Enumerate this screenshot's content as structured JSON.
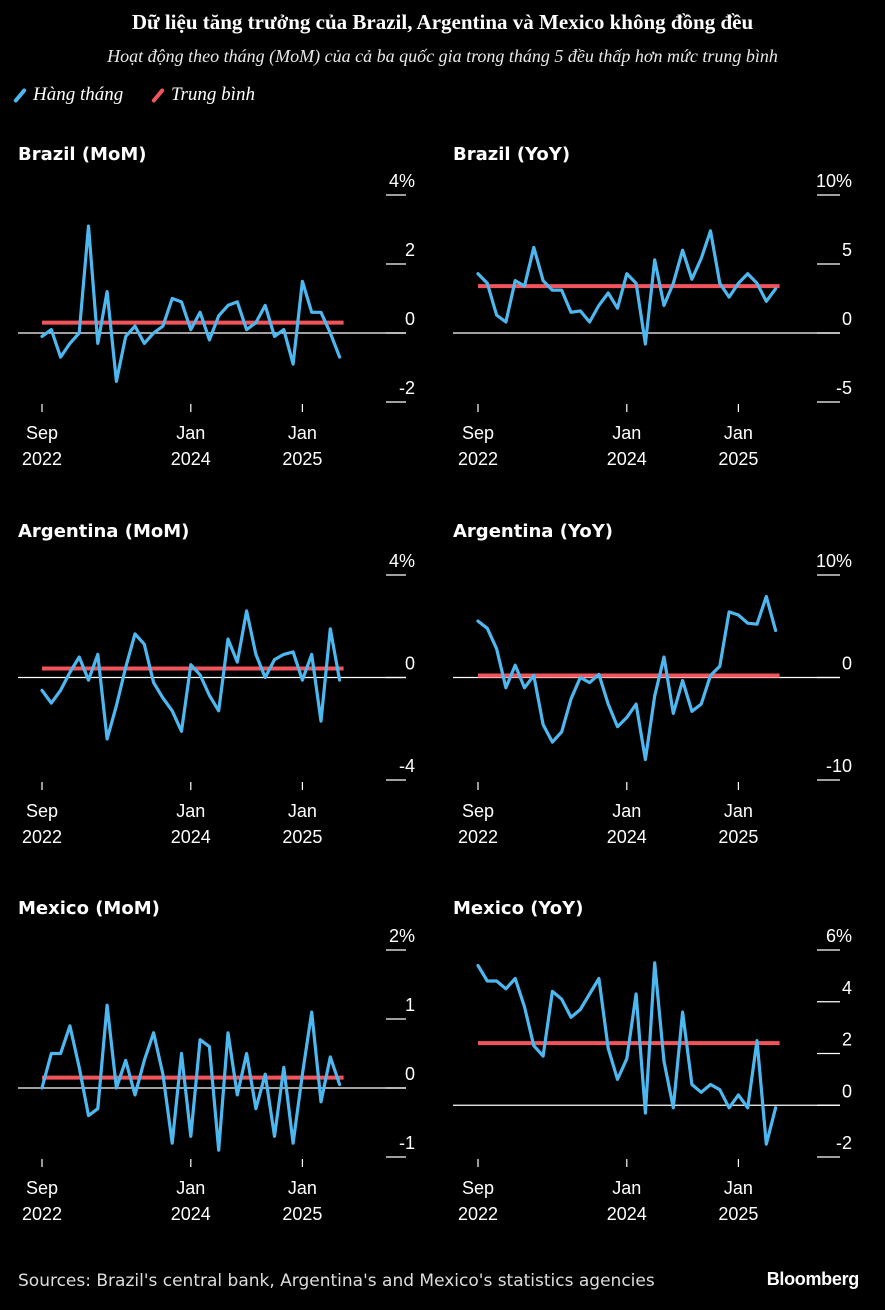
{
  "title": "Dữ liệu tăng trưởng của Brazil, Argentina và Mexico không đồng đều",
  "subtitle": "Hoạt động theo tháng (MoM) của cả ba quốc gia trong tháng 5 đều thấp hơn mức trung bình",
  "legend": [
    {
      "label": "Hàng tháng",
      "color": "#4db8f0"
    },
    {
      "label": "Trung bình",
      "color": "#f2545b"
    }
  ],
  "footer": "Sources: Brazil's central bank, Argentina's and Mexico's statistics agencies",
  "brand": "Bloomberg",
  "colors": {
    "line": "#4db8f0",
    "avg": "#f2545b",
    "axis": "#ffffff"
  },
  "x_ticks": [
    {
      "month": 0,
      "line1": "Sep",
      "line2": "2022"
    },
    {
      "month": 16,
      "line1": "Jan",
      "line2": "2024"
    },
    {
      "month": 28,
      "line1": "Jan",
      "line2": "2025"
    }
  ],
  "chart_data": [
    {
      "id": "brazil-mom",
      "title": "Brazil (MoM)",
      "type": "line",
      "ylim": [
        -2,
        4
      ],
      "yticks": [
        {
          "v": 4,
          "label": "4%"
        },
        {
          "v": 2,
          "label": "2"
        },
        {
          "v": 0,
          "label": "0"
        },
        {
          "v": -2,
          "label": "-2"
        }
      ],
      "average": 0.3,
      "x_start": "2022-09",
      "x_end": "2025-05",
      "values": [
        -0.1,
        0.1,
        -0.7,
        -0.3,
        0.0,
        3.1,
        -0.3,
        1.2,
        -1.4,
        -0.1,
        0.2,
        -0.3,
        0.0,
        0.2,
        1.0,
        0.9,
        0.1,
        0.6,
        -0.2,
        0.5,
        0.8,
        0.9,
        0.1,
        0.3,
        0.8,
        -0.1,
        0.1,
        -0.9,
        1.5,
        0.6,
        0.6,
        0.0,
        -0.7
      ]
    },
    {
      "id": "brazil-yoy",
      "title": "Brazil (YoY)",
      "type": "line",
      "ylim": [
        -5,
        10
      ],
      "yticks": [
        {
          "v": 10,
          "label": "10%"
        },
        {
          "v": 5,
          "label": "5"
        },
        {
          "v": 0,
          "label": "0"
        },
        {
          "v": -5,
          "label": "-5"
        }
      ],
      "average": 3.4,
      "x_start": "2022-09",
      "x_end": "2025-05",
      "values": [
        4.3,
        3.6,
        1.3,
        0.8,
        3.8,
        3.4,
        6.2,
        3.8,
        3.1,
        3.1,
        1.5,
        1.6,
        0.8,
        2.0,
        2.9,
        1.8,
        4.3,
        3.6,
        -0.8,
        5.3,
        2.0,
        3.6,
        6.0,
        3.9,
        5.4,
        7.4,
        3.6,
        2.6,
        3.6,
        4.3,
        3.6,
        2.3,
        3.2
      ]
    },
    {
      "id": "argentina-mom",
      "title": "Argentina (MoM)",
      "type": "line",
      "ylim": [
        -4,
        4
      ],
      "yticks": [
        {
          "v": 4,
          "label": "4%"
        },
        {
          "v": 0,
          "label": "0"
        },
        {
          "v": -4,
          "label": "-4"
        }
      ],
      "average": 0.35,
      "x_start": "2022-09",
      "x_end": "2025-05",
      "values": [
        -0.5,
        -1.0,
        -0.5,
        0.2,
        0.8,
        -0.1,
        0.9,
        -2.4,
        -1.1,
        0.4,
        1.7,
        1.3,
        -0.2,
        -0.8,
        -1.3,
        -2.1,
        0.5,
        0.1,
        -0.7,
        -1.3,
        1.5,
        0.6,
        2.6,
        0.9,
        0.0,
        0.7,
        0.9,
        1.0,
        -0.1,
        0.9,
        -1.7,
        1.9,
        -0.1
      ]
    },
    {
      "id": "argentina-yoy",
      "title": "Argentina (YoY)",
      "type": "line",
      "ylim": [
        -10,
        10
      ],
      "yticks": [
        {
          "v": 10,
          "label": "10%"
        },
        {
          "v": 0,
          "label": "0"
        },
        {
          "v": -10,
          "label": "-10"
        }
      ],
      "average": 0.2,
      "x_start": "2022-09",
      "x_end": "2025-05",
      "values": [
        5.5,
        4.8,
        2.8,
        -1.0,
        1.2,
        -1.0,
        0.2,
        -4.6,
        -6.3,
        -5.3,
        -2.1,
        0.0,
        -0.5,
        0.3,
        -2.6,
        -4.8,
        -3.9,
        -2.6,
        -8.0,
        -1.8,
        2.0,
        -3.5,
        -0.3,
        -3.3,
        -2.6,
        0.2,
        1.1,
        6.4,
        6.1,
        5.3,
        5.2,
        7.9,
        4.6
      ]
    },
    {
      "id": "mexico-mom",
      "title": "Mexico (MoM)",
      "type": "line",
      "ylim": [
        -1,
        2
      ],
      "yticks": [
        {
          "v": 2,
          "label": "2%"
        },
        {
          "v": 1,
          "label": "1"
        },
        {
          "v": 0,
          "label": "0"
        },
        {
          "v": -1,
          "label": "-1"
        }
      ],
      "average": 0.15,
      "x_start": "2022-09",
      "x_end": "2025-05",
      "values": [
        0.0,
        0.5,
        0.5,
        0.9,
        0.3,
        -0.4,
        -0.3,
        1.2,
        0.0,
        0.4,
        -0.1,
        0.4,
        0.8,
        0.2,
        -0.8,
        0.5,
        -0.7,
        0.7,
        0.6,
        -0.9,
        0.8,
        -0.1,
        0.5,
        -0.3,
        0.2,
        -0.7,
        0.3,
        -0.8,
        0.2,
        1.1,
        -0.2,
        0.45,
        0.05
      ]
    },
    {
      "id": "mexico-yoy",
      "title": "Mexico (YoY)",
      "type": "line",
      "ylim": [
        -2,
        6
      ],
      "yticks": [
        {
          "v": 6,
          "label": "6%"
        },
        {
          "v": 4,
          "label": "4"
        },
        {
          "v": 2,
          "label": "2"
        },
        {
          "v": 0,
          "label": "0"
        },
        {
          "v": -2,
          "label": "-2"
        }
      ],
      "average": 2.4,
      "x_start": "2022-09",
      "x_end": "2025-05",
      "values": [
        5.4,
        4.8,
        4.8,
        4.5,
        4.9,
        3.8,
        2.3,
        1.9,
        4.4,
        4.1,
        3.4,
        3.7,
        4.3,
        4.9,
        2.2,
        1.0,
        1.8,
        4.3,
        -0.3,
        5.5,
        1.7,
        -0.1,
        3.6,
        0.8,
        0.5,
        0.8,
        0.6,
        -0.1,
        0.4,
        -0.1,
        2.5,
        -1.5,
        -0.1
      ]
    }
  ]
}
